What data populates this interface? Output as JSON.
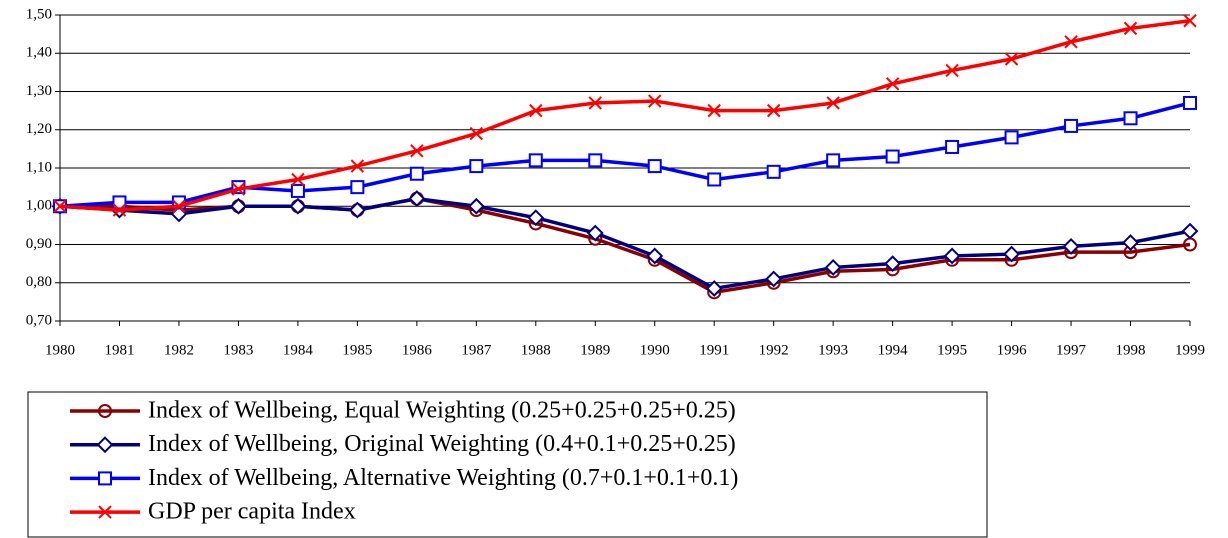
{
  "chart_data": {
    "type": "line",
    "x": [
      1980,
      1981,
      1982,
      1983,
      1984,
      1985,
      1986,
      1987,
      1988,
      1989,
      1990,
      1991,
      1992,
      1993,
      1994,
      1995,
      1996,
      1997,
      1998,
      1999
    ],
    "xlim": [
      1980,
      1999
    ],
    "ylim": [
      0.7,
      1.5
    ],
    "yticks": [
      {
        "value": 0.7,
        "label": "0,70"
      },
      {
        "value": 0.8,
        "label": "0,80"
      },
      {
        "value": 0.9,
        "label": "0,90"
      },
      {
        "value": 1.0,
        "label": "1,00"
      },
      {
        "value": 1.1,
        "label": "1,10"
      },
      {
        "value": 1.2,
        "label": "1,20"
      },
      {
        "value": 1.3,
        "label": "1,30"
      },
      {
        "value": 1.4,
        "label": "1,40"
      },
      {
        "value": 1.5,
        "label": "1,50"
      }
    ],
    "grid": true,
    "legend": "bottom",
    "series": [
      {
        "name": "Index of Wellbeing, Equal Weighting (0.25+0.25+0.25+0.25)",
        "color": "#8b0000",
        "marker": "circle",
        "values": [
          1.0,
          1.0,
          0.99,
          1.0,
          1.0,
          0.99,
          1.02,
          0.99,
          0.955,
          0.915,
          0.86,
          0.775,
          0.8,
          0.83,
          0.835,
          0.86,
          0.86,
          0.88,
          0.88,
          0.9
        ]
      },
      {
        "name": "Index of Wellbeing, Original Weighting (0.4+0.1+0.25+0.25)",
        "color": "#000080",
        "marker": "diamond",
        "values": [
          1.0,
          0.99,
          0.98,
          1.0,
          1.0,
          0.99,
          1.02,
          1.0,
          0.97,
          0.93,
          0.87,
          0.785,
          0.81,
          0.84,
          0.85,
          0.87,
          0.875,
          0.895,
          0.905,
          0.935
        ]
      },
      {
        "name": "Index of Wellbeing, Alternative Weighting (0.7+0.1+0.1+0.1)",
        "color": "#0000ff",
        "marker": "square",
        "values": [
          1.0,
          1.01,
          1.01,
          1.05,
          1.04,
          1.05,
          1.085,
          1.105,
          1.12,
          1.12,
          1.105,
          1.07,
          1.09,
          1.12,
          1.13,
          1.155,
          1.18,
          1.21,
          1.23,
          1.27
        ]
      },
      {
        "name": "GDP per capita Index",
        "color": "#ff0000",
        "marker": "x",
        "values": [
          1.0,
          0.99,
          1.0,
          1.045,
          1.07,
          1.105,
          1.145,
          1.19,
          1.25,
          1.27,
          1.275,
          1.25,
          1.25,
          1.27,
          1.32,
          1.355,
          1.385,
          1.43,
          1.465,
          1.485
        ]
      }
    ]
  }
}
